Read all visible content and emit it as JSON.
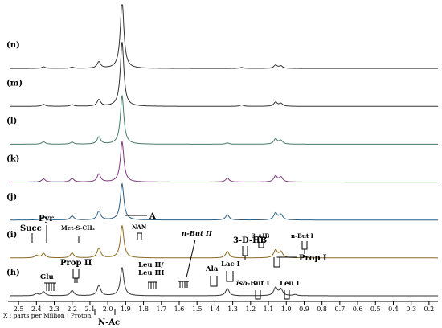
{
  "chart_data": {
    "type": "line",
    "x_axis": {
      "direction": "reversed",
      "range": [
        2.55,
        0.15
      ],
      "ticks": [
        "2.5",
        "2.4",
        "2.3",
        "2.2",
        "2.1",
        "2.0",
        "1.9",
        "1.8",
        "1.7",
        "1.6",
        "1.5",
        "1.4",
        "1.3",
        "1.2",
        "1.1",
        "1.0",
        "0.9",
        "0.8",
        "0.7",
        "0.6",
        "0.5",
        "0.4",
        "0.3",
        "0.2"
      ],
      "caption": "X : parts per Million : Proton"
    },
    "traces": [
      {
        "label": "(n)",
        "color": "#333333",
        "peaks": [
          [
            1.92,
            17
          ],
          [
            2.05,
            1.6
          ],
          [
            2.36,
            0.4
          ],
          [
            2.2,
            0.3
          ],
          [
            1.25,
            0.25
          ],
          [
            1.06,
            0.8
          ],
          [
            1.03,
            0.6
          ]
        ]
      },
      {
        "label": "(m)",
        "color": "#333333",
        "peaks": [
          [
            1.92,
            16
          ],
          [
            2.05,
            1.6
          ],
          [
            2.36,
            0.5
          ],
          [
            2.2,
            0.4
          ],
          [
            1.25,
            0.35
          ],
          [
            1.06,
            1.0
          ],
          [
            1.03,
            0.7
          ]
        ]
      },
      {
        "label": "(l)",
        "color": "#4a7a6a",
        "peaks": [
          [
            1.92,
            12
          ],
          [
            2.05,
            1.8
          ],
          [
            2.36,
            0.6
          ],
          [
            2.2,
            0.5
          ],
          [
            1.33,
            0.3
          ],
          [
            1.06,
            1.3
          ],
          [
            1.03,
            0.9
          ]
        ]
      },
      {
        "label": "(k)",
        "color": "#7a3a78",
        "peaks": [
          [
            1.92,
            10
          ],
          [
            2.05,
            2.0
          ],
          [
            2.36,
            0.8
          ],
          [
            2.2,
            0.9
          ],
          [
            1.33,
            1.0
          ],
          [
            1.06,
            1.5
          ],
          [
            1.03,
            1.2
          ]
        ]
      },
      {
        "label": "(j)",
        "color": "#2f5f7f",
        "peaks": [
          [
            1.92,
            9
          ],
          [
            2.05,
            2.2
          ],
          [
            2.36,
            0.9
          ],
          [
            2.2,
            1.0
          ],
          [
            1.33,
            1.3
          ],
          [
            1.06,
            1.7
          ],
          [
            1.03,
            1.3
          ]
        ]
      },
      {
        "label": "(i)",
        "color": "#8a6a22",
        "peaks": [
          [
            1.92,
            8
          ],
          [
            2.05,
            2.4
          ],
          [
            2.36,
            1.1
          ],
          [
            2.4,
            0.6
          ],
          [
            2.2,
            1.2
          ],
          [
            1.33,
            1.6
          ],
          [
            1.06,
            1.9
          ],
          [
            1.03,
            1.5
          ],
          [
            0.9,
            0.3
          ]
        ]
      },
      {
        "label": "(h)",
        "color": "#333333",
        "peaks": [
          [
            1.92,
            7
          ],
          [
            2.05,
            2.6
          ],
          [
            2.36,
            1.0
          ],
          [
            2.4,
            0.5
          ],
          [
            2.2,
            1.3
          ],
          [
            1.33,
            1.8
          ],
          [
            1.06,
            2.0
          ],
          [
            1.03,
            1.6
          ],
          [
            0.95,
            0.3
          ]
        ]
      }
    ],
    "annotations": {
      "succ": "Succ",
      "pyr": "Pyr",
      "met_s_ch3": "Met-S-CH₃",
      "prop_ii": "Prop II",
      "glu": "Glu",
      "a": "A",
      "nan": "NAN",
      "n_but_ii": "n-But II",
      "three_d_hb": "3-D-HB",
      "three_aib": "3-AIB",
      "n_but_i": "n-But I",
      "leu_ii_leu_iii": "Leu II/\nLeu III",
      "ala": "Ala",
      "lac_i": "Lac I",
      "prop_i": "Prop I",
      "iso_but_i": "iso-But I",
      "leu_i": "Leu I",
      "n_ac": "N-Ac"
    }
  }
}
